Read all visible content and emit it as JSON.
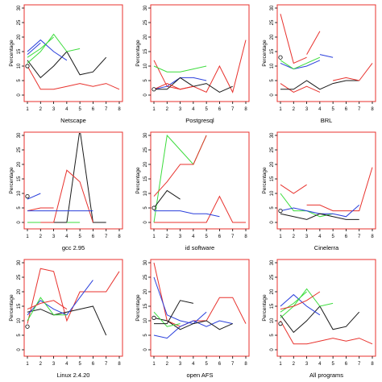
{
  "colors": {
    "black": "#1a1a1a",
    "red": "#e8322d",
    "green": "#3cdc3c",
    "blue": "#2a3fdc",
    "frame": "#e8322d"
  },
  "chart_data": [
    {
      "type": "line",
      "title": "Netscape",
      "ylabel": "Percentage",
      "x": [
        1,
        2,
        3,
        4,
        5,
        6,
        7,
        8
      ],
      "xlim": [
        1,
        8
      ],
      "ylim": [
        0,
        30
      ],
      "yticks": [
        0,
        5,
        10,
        15,
        20,
        25,
        30
      ],
      "xticks": [
        1,
        2,
        3,
        4,
        5,
        6,
        7,
        8
      ],
      "marker": {
        "x": 1,
        "y": 10
      },
      "series": [
        {
          "color": "black",
          "values": [
            12,
            6,
            10,
            15,
            7,
            8,
            13,
            null
          ]
        },
        {
          "color": "red",
          "values": [
            10,
            2,
            2,
            3,
            4,
            3,
            4,
            2
          ]
        },
        {
          "color": "green",
          "values": [
            11,
            15,
            21,
            15,
            16,
            null,
            null,
            null
          ]
        },
        {
          "color": "blue",
          "values": [
            15,
            19,
            15,
            12,
            null,
            18,
            null,
            null
          ]
        },
        {
          "color": "green",
          "values": [
            13,
            16,
            20,
            null,
            null,
            null,
            null,
            null
          ]
        },
        {
          "color": "blue",
          "values": [
            14,
            18,
            null,
            null,
            null,
            null,
            null,
            null
          ]
        }
      ]
    },
    {
      "type": "line",
      "title": "Postgresql",
      "ylabel": "Percentage",
      "x": [
        1,
        2,
        3,
        4,
        5,
        6,
        7,
        8
      ],
      "xlim": [
        1,
        8
      ],
      "ylim": [
        0,
        30
      ],
      "yticks": [
        0,
        5,
        10,
        15,
        20,
        25,
        30
      ],
      "xticks": [
        1,
        2,
        3,
        4,
        5,
        6,
        7,
        8
      ],
      "marker": {
        "x": 1,
        "y": 2
      },
      "series": [
        {
          "color": "red",
          "values": [
            12,
            3,
            2,
            3,
            1,
            10,
            1,
            19
          ]
        },
        {
          "color": "green",
          "values": [
            10,
            8,
            8,
            9,
            10,
            null,
            null,
            null
          ]
        },
        {
          "color": "blue",
          "values": [
            2,
            3,
            6,
            6,
            5,
            null,
            null,
            null
          ]
        },
        {
          "color": "black",
          "values": [
            2,
            2,
            6,
            3,
            4,
            1,
            3,
            null
          ]
        },
        {
          "color": "red",
          "values": [
            2,
            4,
            2,
            3,
            null,
            null,
            null,
            null
          ]
        }
      ]
    },
    {
      "type": "line",
      "title": "BRL",
      "ylabel": "Percentage",
      "x": [
        1,
        2,
        3,
        4,
        5,
        6,
        7,
        8
      ],
      "xlim": [
        1,
        8
      ],
      "ylim": [
        0,
        30
      ],
      "yticks": [
        0,
        5,
        10,
        15,
        20,
        25,
        30
      ],
      "xticks": [
        1,
        2,
        3,
        4,
        5,
        6,
        7,
        8
      ],
      "marker": {
        "x": 1,
        "y": 13
      },
      "series": [
        {
          "color": "red",
          "values": [
            28,
            11,
            13,
            null,
            null,
            null,
            null,
            null
          ]
        },
        {
          "color": "red",
          "values": [
            null,
            null,
            14,
            22,
            null,
            null,
            null,
            null
          ]
        },
        {
          "color": "blue",
          "values": [
            11,
            9,
            10,
            12,
            null,
            null,
            null,
            null
          ]
        },
        {
          "color": "green",
          "values": [
            12,
            9,
            11,
            13,
            null,
            null,
            null,
            null
          ]
        },
        {
          "color": "blue",
          "values": [
            null,
            null,
            null,
            14,
            13,
            null,
            null,
            null
          ]
        },
        {
          "color": "red",
          "values": [
            4,
            1,
            3,
            1,
            null,
            null,
            null,
            null
          ]
        },
        {
          "color": "black",
          "values": [
            2,
            2,
            5,
            2,
            4,
            5,
            5,
            null
          ]
        },
        {
          "color": "red",
          "values": [
            null,
            null,
            null,
            null,
            5,
            6,
            5,
            11
          ]
        }
      ]
    },
    {
      "type": "line",
      "title": "gcc 2.95",
      "ylabel": "Percentage",
      "x": [
        1,
        2,
        3,
        4,
        5,
        6,
        7,
        8
      ],
      "xlim": [
        1,
        8
      ],
      "ylim": [
        0,
        30
      ],
      "yticks": [
        0,
        5,
        10,
        15,
        20,
        25,
        30
      ],
      "xticks": [
        1,
        2,
        3,
        4,
        5,
        6,
        7,
        8
      ],
      "marker": {
        "x": 1,
        "y": 9
      },
      "series": [
        {
          "color": "blue",
          "values": [
            8,
            10,
            null,
            null,
            null,
            null,
            null,
            null
          ]
        },
        {
          "color": "red",
          "values": [
            4,
            5,
            5,
            null,
            null,
            null,
            null,
            null
          ]
        },
        {
          "color": "black",
          "values": [
            0,
            0,
            0,
            0,
            32,
            0,
            0,
            null
          ]
        },
        {
          "color": "red",
          "values": [
            0,
            0,
            0,
            18,
            14,
            0,
            null,
            null
          ]
        },
        {
          "color": "blue",
          "values": [
            4,
            4,
            4,
            4,
            4,
            4,
            null,
            null
          ]
        },
        {
          "color": "green",
          "values": [
            0,
            0,
            null,
            0,
            0,
            null,
            null,
            null
          ]
        }
      ]
    },
    {
      "type": "line",
      "title": "id software",
      "ylabel": "Percentage",
      "x": [
        1,
        2,
        3,
        4,
        5,
        6,
        7,
        8
      ],
      "xlim": [
        1,
        8
      ],
      "ylim": [
        0,
        30
      ],
      "yticks": [
        0,
        5,
        10,
        15,
        20,
        25,
        30
      ],
      "xticks": [
        1,
        2,
        3,
        4,
        5,
        6,
        7,
        8
      ],
      "marker": {
        "x": 1,
        "y": 5
      },
      "series": [
        {
          "color": "green",
          "values": [
            0,
            30,
            25,
            20,
            30,
            null,
            null,
            null
          ]
        },
        {
          "color": "red",
          "values": [
            9,
            14,
            20,
            20,
            30,
            null,
            null,
            null
          ]
        },
        {
          "color": "black",
          "values": [
            5,
            11,
            8,
            null,
            null,
            null,
            null,
            null
          ]
        },
        {
          "color": "red",
          "values": [
            0,
            0,
            0,
            0,
            0,
            9,
            0,
            0
          ]
        },
        {
          "color": "blue",
          "values": [
            4,
            4,
            4,
            3,
            3,
            2,
            null,
            null
          ]
        }
      ]
    },
    {
      "type": "line",
      "title": "Cinelerra",
      "ylabel": "Percentage",
      "x": [
        1,
        2,
        3,
        4,
        5,
        6,
        7,
        8
      ],
      "xlim": [
        1,
        8
      ],
      "ylim": [
        0,
        30
      ],
      "yticks": [
        0,
        5,
        10,
        15,
        20,
        25,
        30
      ],
      "xticks": [
        1,
        2,
        3,
        4,
        5,
        6,
        7,
        8
      ],
      "marker": {
        "x": 1,
        "y": 4
      },
      "series": [
        {
          "color": "red",
          "values": [
            13,
            10,
            13,
            null,
            null,
            null,
            null,
            null
          ]
        },
        {
          "color": "red",
          "values": [
            null,
            null,
            6,
            6,
            4,
            4,
            4,
            19
          ]
        },
        {
          "color": "green",
          "values": [
            10,
            4,
            4,
            2,
            3,
            null,
            null,
            null
          ]
        },
        {
          "color": "blue",
          "values": [
            4,
            5,
            4,
            3,
            3,
            2,
            6,
            null
          ]
        },
        {
          "color": "black",
          "values": [
            3,
            2,
            1,
            3,
            2,
            1,
            1,
            null
          ]
        }
      ]
    },
    {
      "type": "line",
      "title": "Linux 2.4.20",
      "ylabel": "Percentage",
      "x": [
        1,
        2,
        3,
        4,
        5,
        6,
        7,
        8
      ],
      "xlim": [
        1,
        8
      ],
      "ylim": [
        0,
        30
      ],
      "yticks": [
        0,
        5,
        10,
        15,
        20,
        25,
        30
      ],
      "xticks": [
        1,
        2,
        3,
        4,
        5,
        6,
        7,
        8
      ],
      "marker": {
        "x": 1,
        "y": 8
      },
      "series": [
        {
          "color": "red",
          "values": [
            9,
            28,
            27,
            10,
            20,
            20,
            20,
            27
          ]
        },
        {
          "color": "black",
          "values": [
            13,
            14,
            12,
            13,
            14,
            15,
            5,
            null
          ]
        },
        {
          "color": "blue",
          "values": [
            12,
            17,
            14,
            12,
            18,
            24,
            null,
            null
          ]
        },
        {
          "color": "green",
          "values": [
            10,
            18,
            12,
            12,
            null,
            null,
            null,
            null
          ]
        },
        {
          "color": "red",
          "values": [
            14,
            16,
            17,
            14,
            null,
            null,
            null,
            null
          ]
        }
      ]
    },
    {
      "type": "line",
      "title": "open AFS",
      "ylabel": "Percentage",
      "x": [
        1,
        2,
        3,
        4,
        5,
        6,
        7,
        8
      ],
      "xlim": [
        1,
        8
      ],
      "ylim": [
        0,
        30
      ],
      "yticks": [
        0,
        5,
        10,
        15,
        20,
        25,
        30
      ],
      "xticks": [
        1,
        2,
        3,
        4,
        5,
        6,
        7,
        8
      ],
      "marker": {
        "x": 1,
        "y": 11
      },
      "series": [
        {
          "color": "red",
          "values": [
            30,
            10,
            8,
            10,
            10,
            18,
            18,
            9
          ]
        },
        {
          "color": "blue",
          "values": [
            25,
            12,
            10,
            9,
            13,
            null,
            null,
            null
          ]
        },
        {
          "color": "blue",
          "values": [
            5,
            4,
            8,
            10,
            8,
            10,
            9,
            null
          ]
        },
        {
          "color": "black",
          "values": [
            11,
            10,
            7,
            9,
            10,
            7,
            9,
            null
          ]
        },
        {
          "color": "green",
          "values": [
            13,
            8,
            9,
            null,
            null,
            null,
            null,
            null
          ]
        },
        {
          "color": "black",
          "values": [
            9,
            9,
            17,
            16,
            null,
            null,
            null,
            null
          ]
        }
      ]
    },
    {
      "type": "line",
      "title": "All programs",
      "ylabel": "Percentage",
      "x": [
        1,
        2,
        3,
        4,
        5,
        6,
        7,
        8
      ],
      "xlim": [
        1,
        8
      ],
      "ylim": [
        0,
        30
      ],
      "yticks": [
        0,
        5,
        10,
        15,
        20,
        25,
        30
      ],
      "xticks": [
        1,
        2,
        3,
        4,
        5,
        6,
        7,
        8
      ],
      "marker": {
        "x": 1,
        "y": 9
      },
      "series": [
        {
          "color": "black",
          "values": [
            12,
            6,
            10,
            15,
            7,
            8,
            13,
            null
          ]
        },
        {
          "color": "red",
          "values": [
            10,
            2,
            2,
            3,
            4,
            3,
            4,
            2
          ]
        },
        {
          "color": "green",
          "values": [
            11,
            15,
            21,
            15,
            16,
            null,
            null,
            null
          ]
        },
        {
          "color": "blue",
          "values": [
            15,
            19,
            15,
            12,
            null,
            18,
            null,
            null
          ]
        },
        {
          "color": "green",
          "values": [
            13,
            16,
            20,
            null,
            null,
            null,
            null,
            null
          ]
        },
        {
          "color": "red",
          "values": [
            14,
            15,
            17,
            20,
            null,
            null,
            null,
            null
          ]
        }
      ]
    }
  ]
}
